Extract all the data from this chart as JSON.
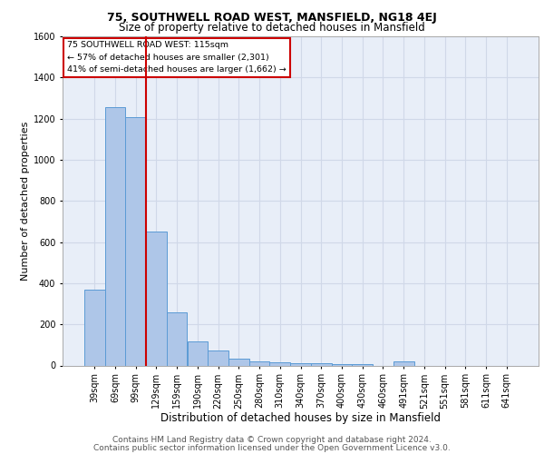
{
  "title1": "75, SOUTHWELL ROAD WEST, MANSFIELD, NG18 4EJ",
  "title2": "Size of property relative to detached houses in Mansfield",
  "xlabel": "Distribution of detached houses by size in Mansfield",
  "ylabel": "Number of detached properties",
  "footer1": "Contains HM Land Registry data © Crown copyright and database right 2024.",
  "footer2": "Contains public sector information licensed under the Open Government Licence v3.0.",
  "categories": [
    "39sqm",
    "69sqm",
    "99sqm",
    "129sqm",
    "159sqm",
    "190sqm",
    "220sqm",
    "250sqm",
    "280sqm",
    "310sqm",
    "340sqm",
    "370sqm",
    "400sqm",
    "430sqm",
    "460sqm",
    "491sqm",
    "521sqm",
    "551sqm",
    "581sqm",
    "611sqm",
    "641sqm"
  ],
  "values": [
    370,
    1255,
    1205,
    650,
    260,
    115,
    75,
    35,
    20,
    15,
    12,
    10,
    8,
    5,
    0,
    20,
    0,
    0,
    0,
    0,
    0
  ],
  "bar_color": "#aec6e8",
  "bar_edge_color": "#5b9bd5",
  "vline_color": "#cc0000",
  "annotation_text": "75 SOUTHWELL ROAD WEST: 115sqm\n← 57% of detached houses are smaller (2,301)\n41% of semi-detached houses are larger (1,662) →",
  "annotation_box_color": "#ffffff",
  "annotation_box_edge": "#cc0000",
  "ylim": [
    0,
    1600
  ],
  "yticks": [
    0,
    200,
    400,
    600,
    800,
    1000,
    1200,
    1400,
    1600
  ],
  "grid_color": "#d0d8e8",
  "bg_color": "#e8eef8",
  "title1_fontsize": 9,
  "title2_fontsize": 8.5,
  "xlabel_fontsize": 8.5,
  "ylabel_fontsize": 8,
  "footer_fontsize": 6.5,
  "tick_fontsize": 7,
  "annot_fontsize": 6.8
}
